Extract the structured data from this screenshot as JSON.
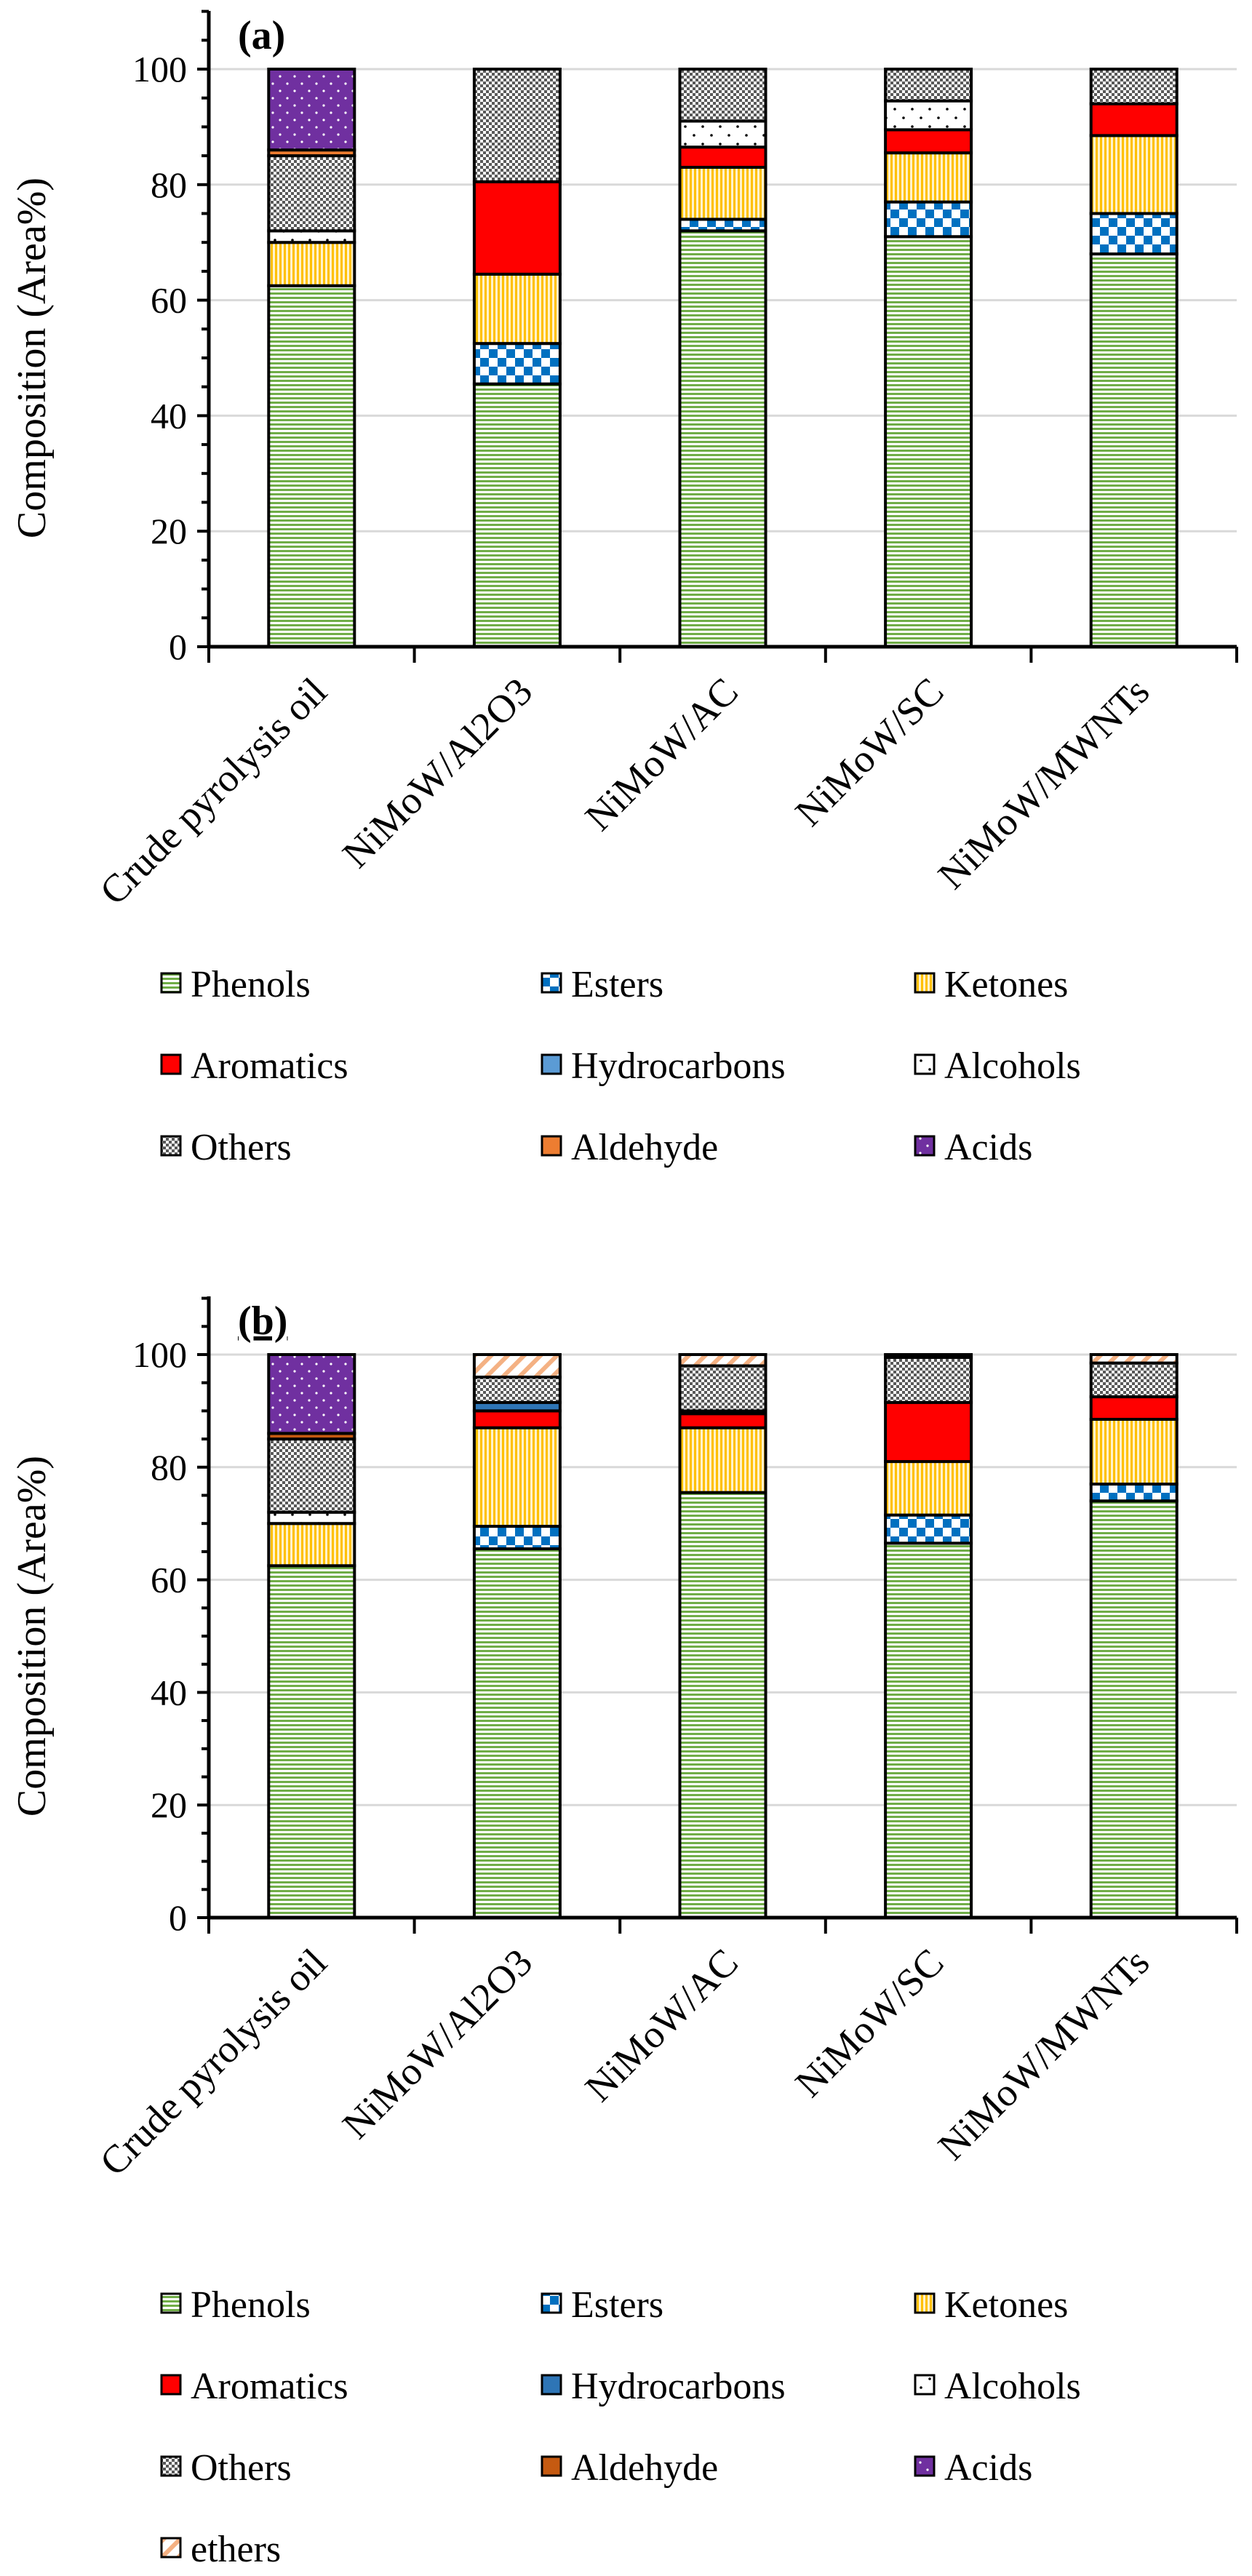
{
  "chart_data": [
    {
      "type": "bar",
      "stacked": true,
      "panel_label": "(a)",
      "ylabel": "Composition (Area%)",
      "ylim": [
        0,
        100
      ],
      "yticks": [
        "0",
        "20",
        "40",
        "60",
        "80",
        "100"
      ],
      "grid": true,
      "legend_position": "bottom",
      "categories": [
        "Crude pyrolysis oil",
        "NiMoW/Al2O3",
        "NiMoW/AC",
        "NiMoW/SC",
        "NiMoW/MWNTs"
      ],
      "series": [
        {
          "name": "Phenols",
          "color": "#70ad47",
          "values": [
            62.5,
            45.5,
            72.0,
            71.0,
            68.0
          ]
        },
        {
          "name": "Esters",
          "color": "#0070c0",
          "values": [
            0,
            7.0,
            2.0,
            6.0,
            7.0
          ]
        },
        {
          "name": "Ketones",
          "color": "#ffc000",
          "values": [
            7.5,
            12.0,
            9.0,
            8.5,
            13.5
          ]
        },
        {
          "name": "Aromatics",
          "color": "#ff0000",
          "values": [
            0,
            16.0,
            3.5,
            4.0,
            5.5
          ]
        },
        {
          "name": "Hydrocarbons",
          "color": "#5b9bd5",
          "values": [
            0,
            0,
            0,
            0,
            0
          ]
        },
        {
          "name": "Alcohols",
          "color": "#000000",
          "values": [
            2.0,
            0,
            4.5,
            5.0,
            0
          ]
        },
        {
          "name": "Others",
          "color": "#595959",
          "values": [
            13.0,
            19.5,
            9.0,
            5.5,
            6.0
          ]
        },
        {
          "name": "Aldehyde",
          "color": "#ed7d31",
          "values": [
            1.0,
            0,
            0,
            0,
            0
          ]
        },
        {
          "name": "Acids",
          "color": "#7030a0",
          "values": [
            14.0,
            0,
            0,
            0,
            0
          ]
        }
      ]
    },
    {
      "type": "bar",
      "stacked": true,
      "panel_label": "(b)",
      "ylabel": "Composition (Area%)",
      "ylim": [
        0,
        100
      ],
      "yticks": [
        "0",
        "20",
        "40",
        "60",
        "80",
        "100"
      ],
      "grid": true,
      "legend_position": "bottom",
      "categories": [
        "Crude pyrolysis oil",
        "NiMoW/Al2O3",
        "NiMoW/AC",
        "NiMoW/SC",
        "NiMoW/MWNTs"
      ],
      "series": [
        {
          "name": "Phenols",
          "color": "#70ad47",
          "values": [
            62.5,
            65.5,
            75.5,
            66.5,
            74.0
          ]
        },
        {
          "name": "Esters",
          "color": "#0070c0",
          "values": [
            0,
            4.0,
            0,
            5.0,
            3.0
          ]
        },
        {
          "name": "Ketones",
          "color": "#ffc000",
          "values": [
            7.5,
            17.5,
            11.5,
            9.5,
            11.5
          ]
        },
        {
          "name": "Aromatics",
          "color": "#ff0000",
          "values": [
            0,
            3.0,
            2.5,
            10.5,
            4.0
          ]
        },
        {
          "name": "Hydrocarbons",
          "color": "#2e75b6",
          "values": [
            0,
            1.5,
            0,
            0,
            0
          ]
        },
        {
          "name": "Alcohols",
          "color": "#000000",
          "values": [
            2.0,
            0,
            0.5,
            0,
            0
          ]
        },
        {
          "name": "Others",
          "color": "#595959",
          "values": [
            13.0,
            4.5,
            8.0,
            8.0,
            6.0
          ]
        },
        {
          "name": "Aldehyde",
          "color": "#c55a11",
          "values": [
            1.0,
            0,
            0,
            0,
            0
          ]
        },
        {
          "name": "Acids",
          "color": "#7030a0",
          "values": [
            14.0,
            0,
            0,
            0,
            0
          ]
        },
        {
          "name": "ethers",
          "color": "#f4b183",
          "values": [
            0,
            4.0,
            2.0,
            0.5,
            1.5
          ]
        }
      ]
    }
  ]
}
